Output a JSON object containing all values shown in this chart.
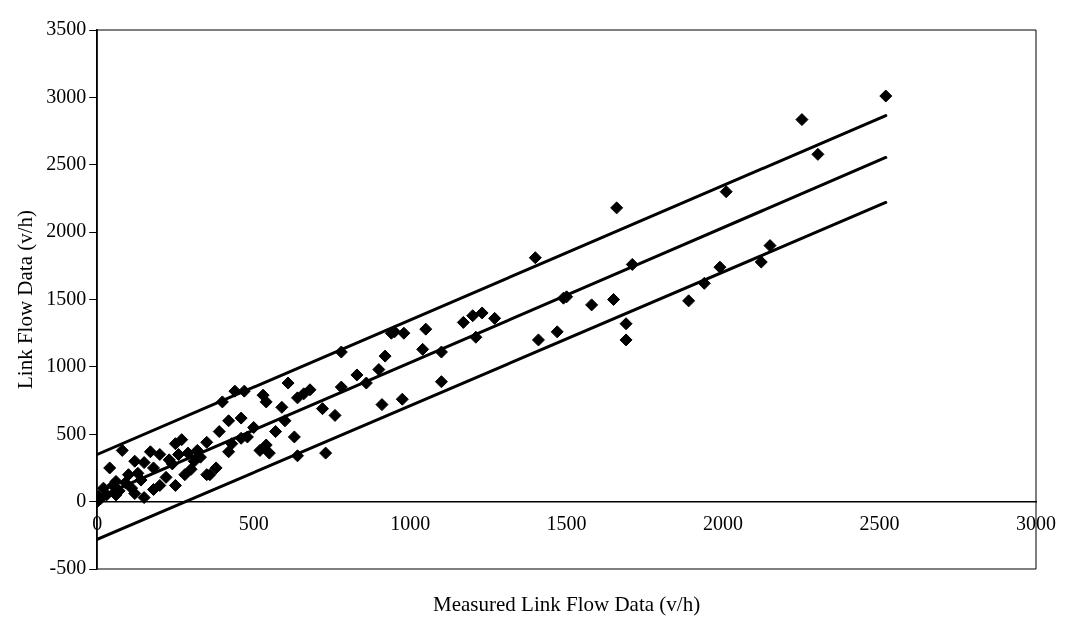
{
  "chart_data": {
    "type": "scatter",
    "xlabel": "Measured Link Flow Data (v/h)",
    "ylabel": "Link Flow Data (v/h)",
    "xlim": [
      0,
      3000
    ],
    "xticks": [
      0,
      500,
      1000,
      1500,
      2000,
      2500,
      3000
    ],
    "ylim": [
      -500,
      3500
    ],
    "yticks": [
      -500,
      0,
      500,
      1000,
      1500,
      2000,
      2500,
      3000,
      3500
    ],
    "grid": false,
    "legend": false,
    "marker": "diamond",
    "series": [
      {
        "color": "#000000",
        "x": [
          2520,
          2252,
          2303,
          2150,
          2122,
          1660,
          2010,
          1400,
          1710,
          1990,
          1940,
          1890,
          1580,
          1650,
          1500,
          1490,
          1470,
          1410,
          1690,
          1690,
          1270,
          1230,
          1200,
          1210,
          1170,
          1100,
          1100,
          1050,
          1040,
          980,
          950,
          940,
          975,
          920,
          910,
          900,
          860,
          830,
          780,
          780,
          760,
          730,
          720,
          680,
          660,
          640,
          630,
          610,
          600,
          590,
          570,
          540,
          530,
          520,
          500,
          480,
          470,
          460,
          440,
          430,
          420,
          400,
          390,
          380,
          360,
          350,
          320,
          310,
          290,
          270,
          250,
          240,
          230,
          220,
          200,
          180,
          170,
          150,
          140,
          130,
          120,
          110,
          100,
          90,
          80,
          70,
          60,
          50,
          40,
          30,
          20,
          10,
          5,
          0,
          150,
          200,
          250,
          350,
          640,
          550,
          540,
          460,
          420,
          330,
          300,
          280,
          260,
          180,
          120,
          60
        ],
        "values": [
          3010,
          2835,
          2577,
          1900,
          1778,
          2180,
          2300,
          1810,
          1760,
          1740,
          1620,
          1490,
          1460,
          1500,
          1520,
          1510,
          1260,
          1200,
          1320,
          1200,
          1360,
          1400,
          1380,
          1220,
          1330,
          1110,
          890,
          1280,
          1130,
          1250,
          1260,
          1250,
          760,
          1080,
          720,
          980,
          880,
          940,
          1110,
          850,
          640,
          360,
          690,
          830,
          800,
          770,
          480,
          880,
          600,
          700,
          520,
          740,
          790,
          380,
          550,
          480,
          820,
          620,
          820,
          430,
          600,
          740,
          520,
          250,
          200,
          440,
          380,
          300,
          360,
          460,
          430,
          280,
          310,
          180,
          350,
          250,
          370,
          290,
          160,
          210,
          300,
          100,
          200,
          140,
          380,
          80,
          50,
          120,
          250,
          50,
          100,
          20,
          40,
          0,
          30,
          120,
          120,
          200,
          340,
          360,
          420,
          470,
          370,
          330,
          240,
          200,
          350,
          90,
          60,
          150
        ]
      },
      {
        "type": "line",
        "color": "#000000",
        "marker": "none",
        "x": [
          0,
          2520
        ],
        "values": [
          350,
          2865
        ]
      },
      {
        "type": "line",
        "color": "#000000",
        "marker": "none",
        "x": [
          0,
          2520
        ],
        "values": [
          30,
          2554
        ]
      },
      {
        "type": "line",
        "color": "#000000",
        "marker": "none",
        "x": [
          0,
          2520
        ],
        "values": [
          -280,
          2220
        ]
      }
    ]
  }
}
